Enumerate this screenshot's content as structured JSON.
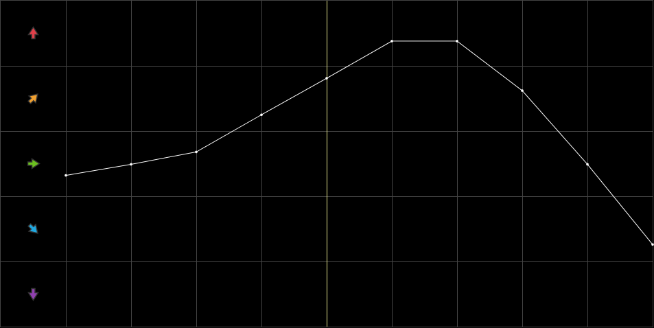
{
  "chart_data": {
    "type": "line",
    "title": "",
    "xlabel": "",
    "ylabel": "",
    "x": [
      0,
      1,
      2,
      3,
      4,
      5,
      6,
      7,
      8,
      9
    ],
    "series": [
      {
        "values": [
          2.32,
          2.49,
          2.68,
          3.25,
          3.81,
          4.38,
          4.38,
          3.62,
          2.49,
          1.26
        ]
      }
    ],
    "xlim": [
      -1,
      9
    ],
    "ylim": [
      0,
      5
    ],
    "grid": true,
    "highlight_x": 4,
    "legend": "left",
    "trend_icons": [
      {
        "name": "arrow-up-icon",
        "color": "#e0404a",
        "angle": 0
      },
      {
        "name": "arrow-up-right-icon",
        "color": "#f0a030",
        "angle": 45
      },
      {
        "name": "arrow-right-icon",
        "color": "#6cc020",
        "angle": 90
      },
      {
        "name": "arrow-down-right-icon",
        "color": "#20a8e0",
        "angle": 135
      },
      {
        "name": "arrow-down-icon",
        "color": "#9040b0",
        "angle": 180
      }
    ],
    "colors": {
      "background": "#000000",
      "grid": "#444444",
      "line": "#ffffff",
      "highlight": "#e8e890"
    }
  }
}
